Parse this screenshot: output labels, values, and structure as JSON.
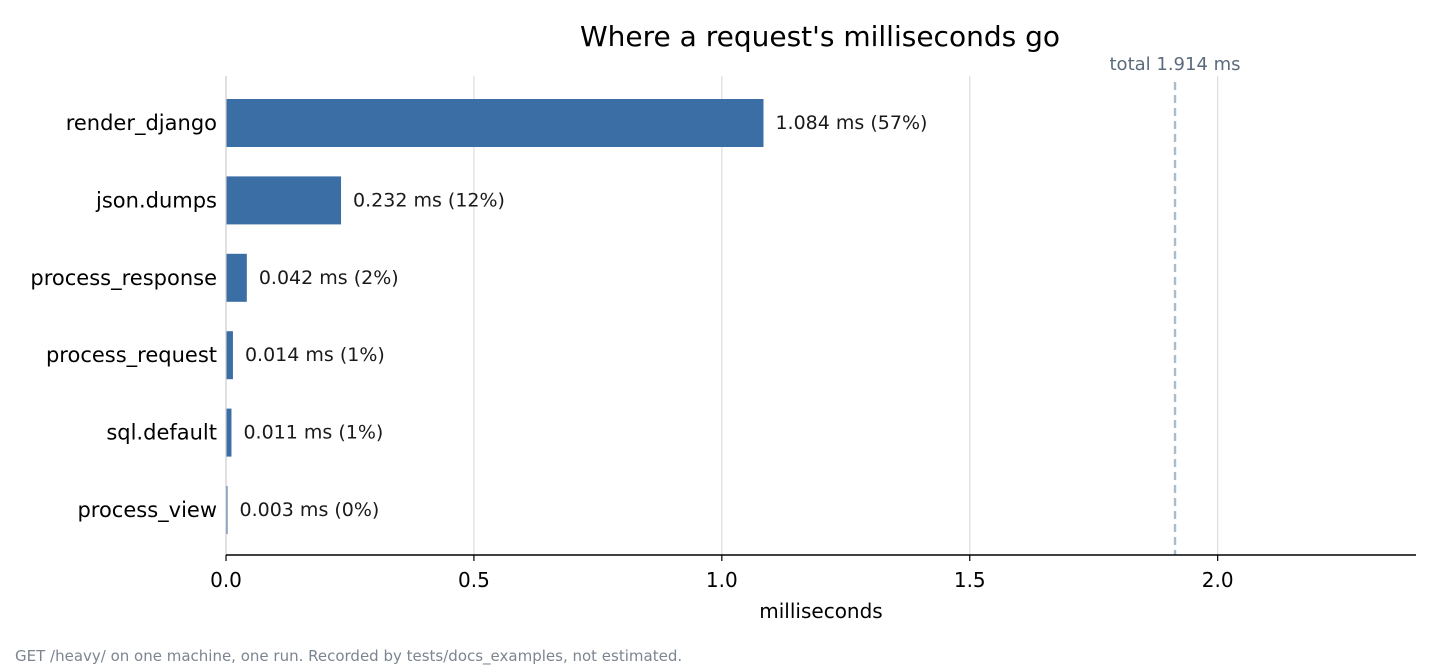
{
  "chart_data": {
    "type": "bar",
    "orientation": "horizontal",
    "title": "Where a request's milliseconds go",
    "xlabel": "milliseconds",
    "ylabel": "",
    "xlim": [
      0,
      2.4
    ],
    "xticks": [
      0.0,
      0.5,
      1.0,
      1.5,
      2.0
    ],
    "xtick_labels": [
      "0.0",
      "0.5",
      "1.0",
      "1.5",
      "2.0"
    ],
    "grid": "vertical",
    "categories": [
      "render_django",
      "json.dumps",
      "process_response",
      "process_request",
      "sql.default",
      "process_view"
    ],
    "values": [
      1.084,
      0.232,
      0.042,
      0.014,
      0.011,
      0.003
    ],
    "data_labels": [
      "1.084 ms  (57%)",
      "0.232 ms  (12%)",
      "0.042 ms  (2%)",
      "0.014 ms  (1%)",
      "0.011 ms  (1%)",
      "0.003 ms  (0%)"
    ],
    "reference_line": {
      "x": 1.914,
      "label": "total 1.914 ms",
      "style": "dashed"
    },
    "colors": {
      "bar": "#3b6ea5",
      "reference": "#a9bccb",
      "reference_text": "#5b6b7d",
      "grid": "#dddddd",
      "axis": "#000000"
    }
  },
  "footnote": "GET /heavy/ on one machine, one run. Recorded by tests/docs_examples, not estimated."
}
